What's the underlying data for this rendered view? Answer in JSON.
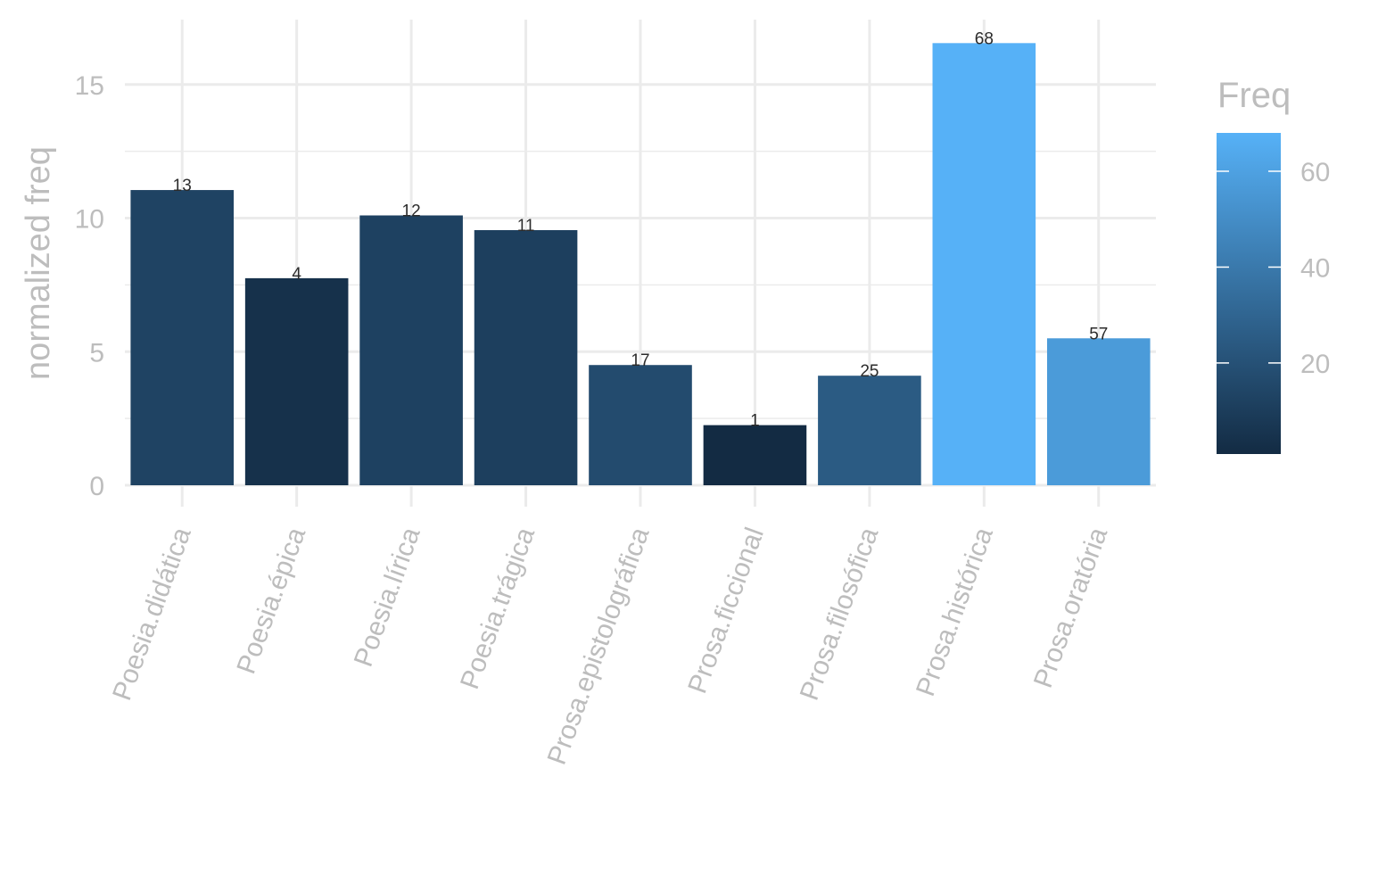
{
  "chart_data": {
    "type": "bar",
    "title": "",
    "xlabel": "",
    "ylabel": "normalized freq",
    "categories": [
      "Poesia.didática",
      "Poesia.épica",
      "Poesia.lírica",
      "Poesia.trágica",
      "Prosa.epistolográfica",
      "Prosa.ficcional",
      "Prosa.filosófica",
      "Prosa.histórica",
      "Prosa.oratória"
    ],
    "values": [
      11.05,
      7.75,
      10.1,
      9.55,
      4.5,
      2.25,
      4.1,
      16.55,
      5.5
    ],
    "bar_labels": [
      "13",
      "4",
      "12",
      "11",
      "17",
      "1",
      "25",
      "68",
      "57"
    ],
    "fill_values": [
      13,
      4,
      12,
      11,
      17,
      1,
      25,
      68,
      57
    ],
    "ylim": [
      0,
      17
    ],
    "y_ticks": [
      0,
      5,
      10,
      15
    ],
    "y_tick_labels": [
      "0",
      "5",
      "10",
      "15"
    ],
    "grid": true,
    "legend": {
      "title": "Freq",
      "placement": "right",
      "type": "colorbar",
      "range": [
        1,
        68
      ],
      "ticks": [
        20,
        40,
        60
      ],
      "tick_labels": [
        "20",
        "40",
        "60"
      ],
      "color_low": "#132B43",
      "color_high": "#56B1F7"
    }
  }
}
